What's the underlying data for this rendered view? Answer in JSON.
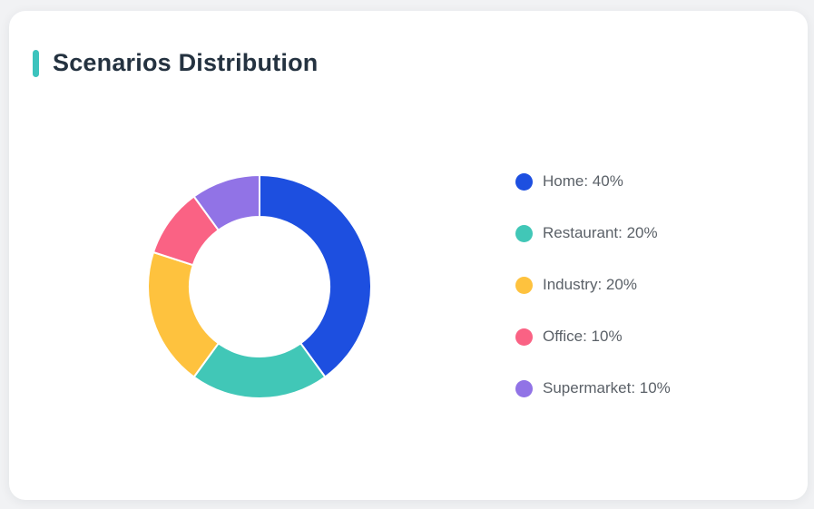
{
  "page": {
    "background": "#f1f2f4"
  },
  "card": {
    "background": "#ffffff",
    "accent_color": "#3cc3bd",
    "title": "Scenarios Distribution",
    "title_color": "#243240"
  },
  "chart_data": {
    "type": "pie",
    "subtype": "donut",
    "title": "Scenarios Distribution",
    "categories": [
      "Home",
      "Restaurant",
      "Industry",
      "Office",
      "Supermarket"
    ],
    "values": [
      40,
      20,
      20,
      10,
      10
    ],
    "unit": "%",
    "colors": [
      "#1d4fe0",
      "#41c7b7",
      "#fec23e",
      "#fa6284",
      "#9173e6"
    ],
    "start_angle_deg": 0,
    "direction": "clockwise",
    "inner_radius_ratio": 0.63,
    "slice_border_color": "#ffffff",
    "legend_position": "right"
  },
  "legend": {
    "text_color": "#5b6168",
    "items": [
      {
        "label": "Home: 40%"
      },
      {
        "label": "Restaurant: 20%"
      },
      {
        "label": "Industry: 20%"
      },
      {
        "label": "Office: 10%"
      },
      {
        "label": "Supermarket: 10%"
      }
    ]
  }
}
